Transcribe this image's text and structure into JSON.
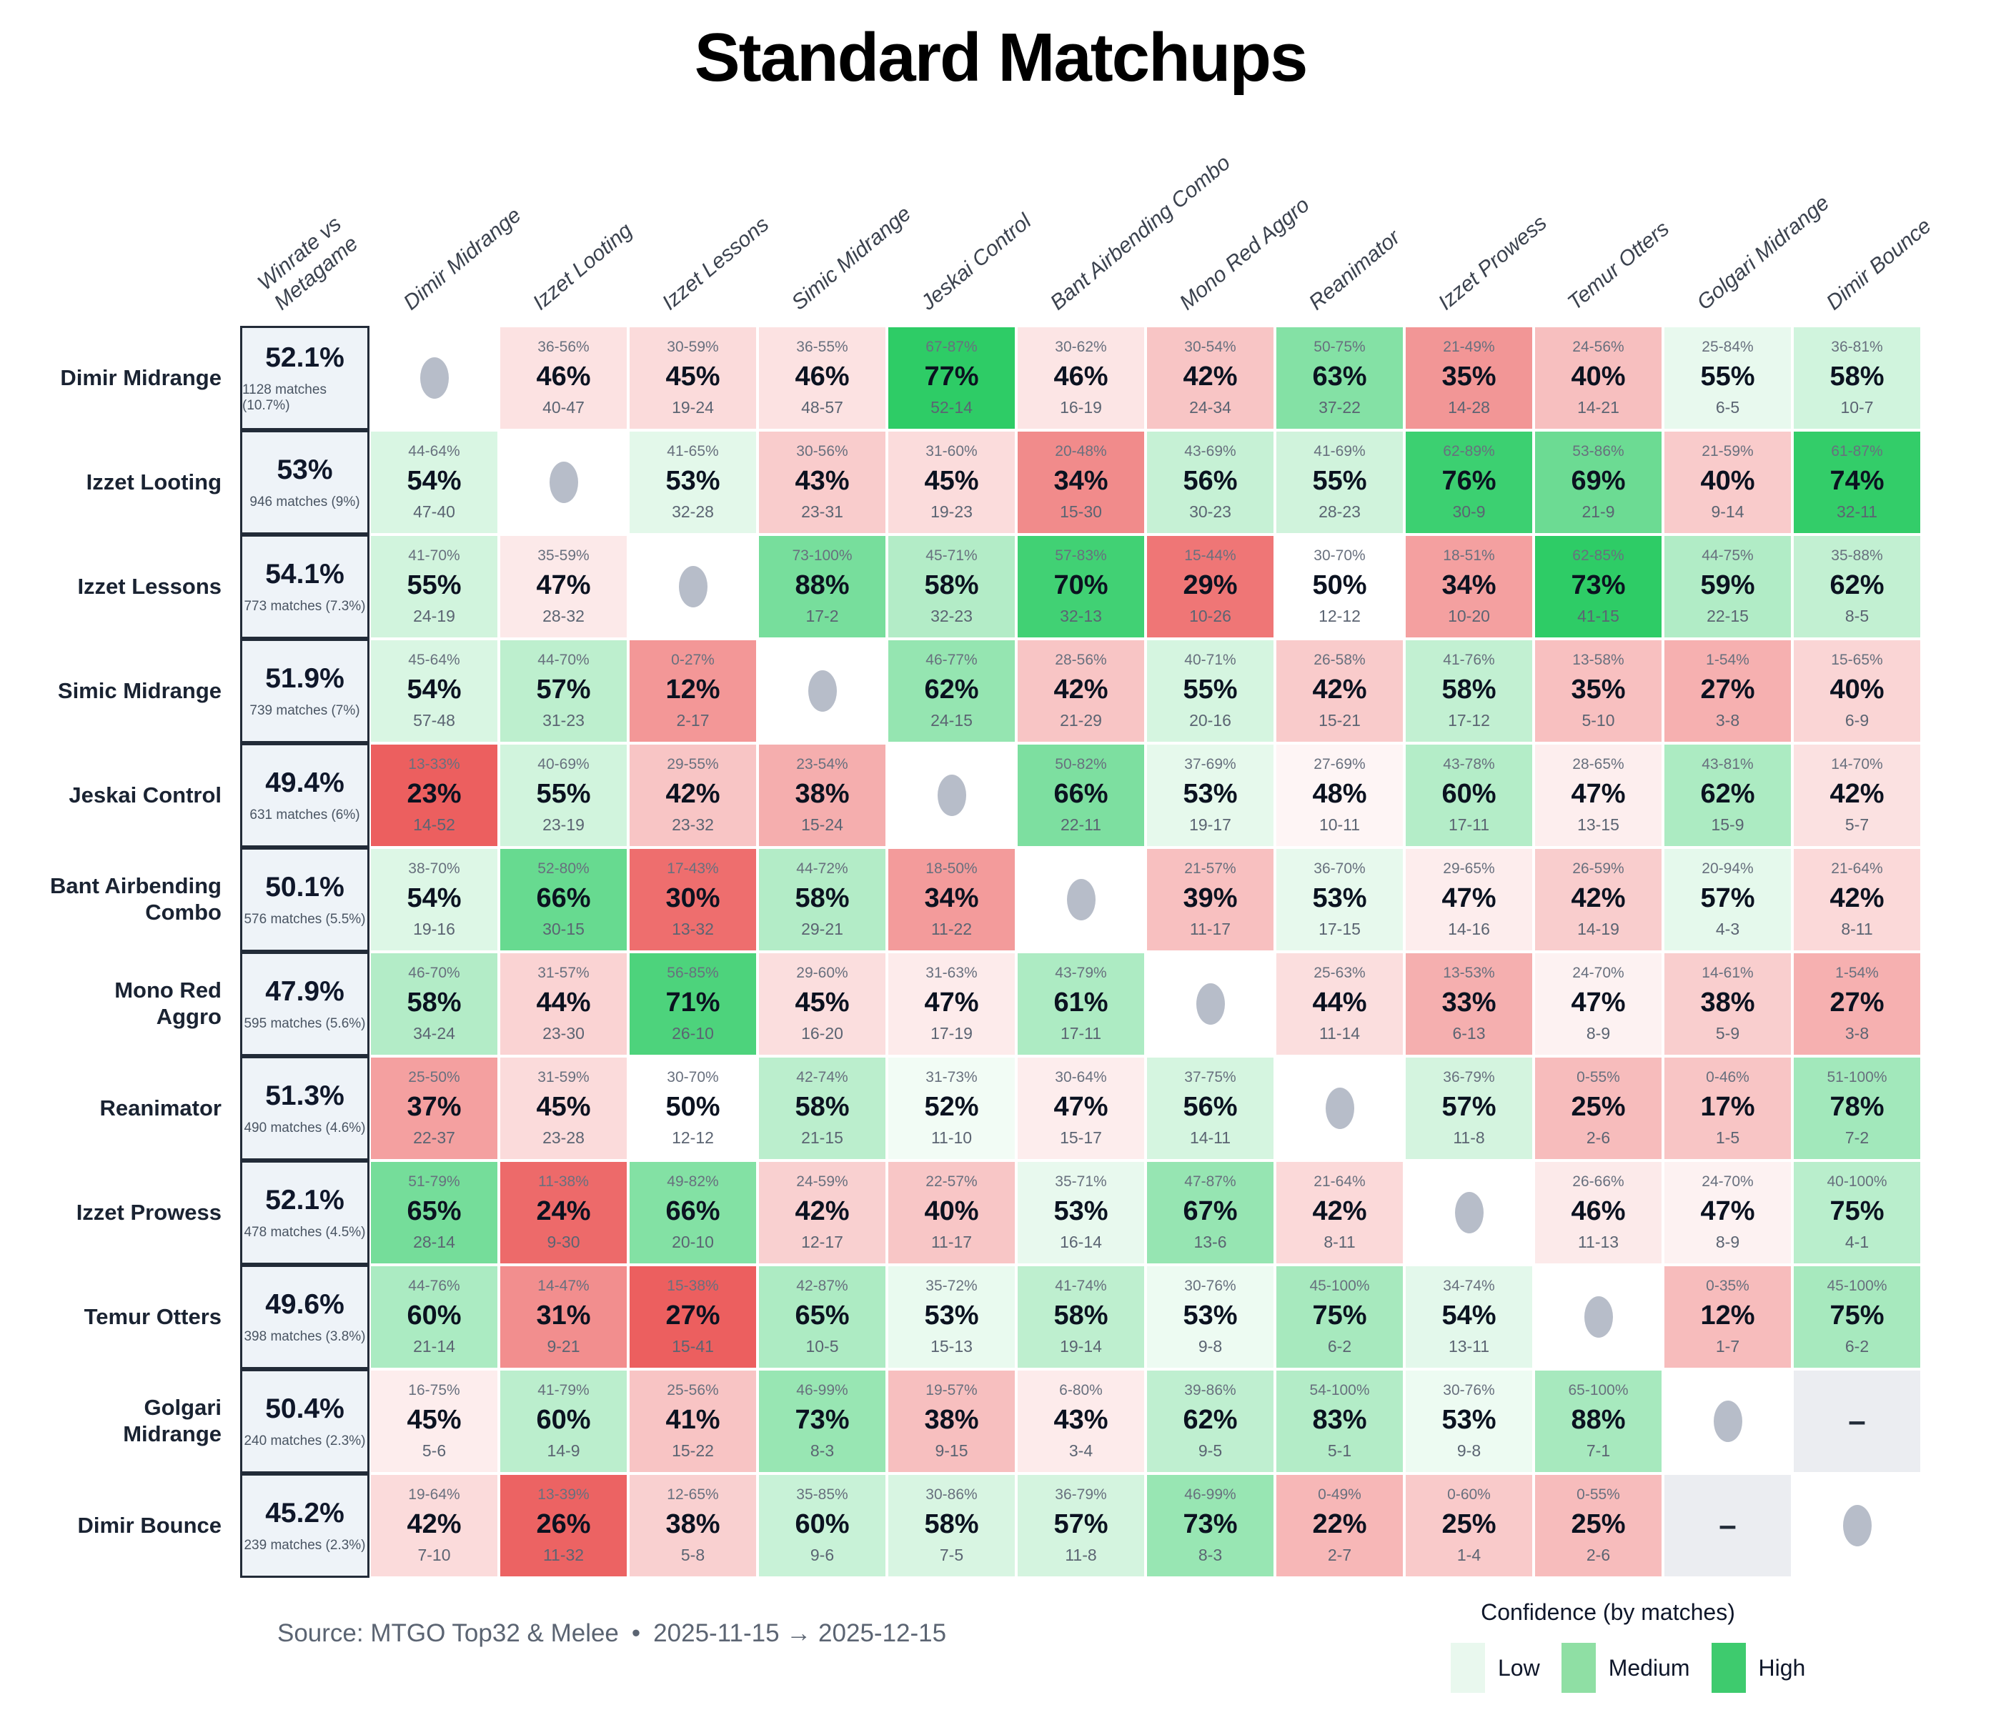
{
  "title": "Standard Matchups",
  "footer": {
    "source": "Source: MTGO Top32 & Melee",
    "bullet": "•",
    "date_range": "2025-11-15 → 2025-12-15"
  },
  "legend": {
    "title": "Confidence (by matches)",
    "items": [
      {
        "label": "Low",
        "color": "#e9f8ee"
      },
      {
        "label": "Medium",
        "color": "#8fdfa4"
      },
      {
        "label": "High",
        "color": "#3ecb6e"
      }
    ]
  },
  "colors": {
    "green_full": "#2ecc66",
    "red_full": "#ec5f5f",
    "winrate_bg": "#eef3f8",
    "winrate_border": "#222b38",
    "diag_dot": "#b7bdc9",
    "dash_bg": "#ebedf1"
  },
  "chart_data": {
    "type": "heatmap",
    "title": "Standard Matchups",
    "first_column_header": [
      "Winrate vs",
      "Metagame"
    ],
    "decks": [
      "Dimir Midrange",
      "Izzet Looting",
      "Izzet Lessons",
      "Simic Midrange",
      "Jeskai Control",
      "Bant Airbending Combo",
      "Mono Red Aggro",
      "Reanimator",
      "Izzet Prowess",
      "Temur Otters",
      "Golgari Midrange",
      "Dimir Bounce"
    ],
    "cell_format": [
      "confidence_interval",
      "winrate",
      "record_w-l"
    ],
    "rows": [
      {
        "deck": "Dimir Midrange",
        "winrate": "52.1%",
        "matches": "1128 matches (10.7%)",
        "cells": [
          "diag",
          [
            "36-56%",
            "46%",
            "40-47"
          ],
          [
            "30-59%",
            "45%",
            "19-24"
          ],
          [
            "36-55%",
            "46%",
            "48-57"
          ],
          [
            "67-87%",
            "77%",
            "52-14"
          ],
          [
            "30-62%",
            "46%",
            "16-19"
          ],
          [
            "30-54%",
            "42%",
            "24-34"
          ],
          [
            "50-75%",
            "63%",
            "37-22"
          ],
          [
            "21-49%",
            "35%",
            "14-28"
          ],
          [
            "24-56%",
            "40%",
            "14-21"
          ],
          [
            "25-84%",
            "55%",
            "6-5"
          ],
          [
            "36-81%",
            "58%",
            "10-7"
          ]
        ]
      },
      {
        "deck": "Izzet Looting",
        "winrate": "53%",
        "matches": "946 matches (9%)",
        "cells": [
          [
            "44-64%",
            "54%",
            "47-40"
          ],
          "diag",
          [
            "41-65%",
            "53%",
            "32-28"
          ],
          [
            "30-56%",
            "43%",
            "23-31"
          ],
          [
            "31-60%",
            "45%",
            "19-23"
          ],
          [
            "20-48%",
            "34%",
            "15-30"
          ],
          [
            "43-69%",
            "56%",
            "30-23"
          ],
          [
            "41-69%",
            "55%",
            "28-23"
          ],
          [
            "62-89%",
            "76%",
            "30-9"
          ],
          [
            "53-86%",
            "69%",
            "21-9"
          ],
          [
            "21-59%",
            "40%",
            "9-14"
          ],
          [
            "61-87%",
            "74%",
            "32-11"
          ]
        ]
      },
      {
        "deck": "Izzet Lessons",
        "winrate": "54.1%",
        "matches": "773 matches (7.3%)",
        "cells": [
          [
            "41-70%",
            "55%",
            "24-19"
          ],
          [
            "35-59%",
            "47%",
            "28-32"
          ],
          "diag",
          [
            "73-100%",
            "88%",
            "17-2"
          ],
          [
            "45-71%",
            "58%",
            "32-23"
          ],
          [
            "57-83%",
            "70%",
            "32-13"
          ],
          [
            "15-44%",
            "29%",
            "10-26"
          ],
          [
            "30-70%",
            "50%",
            "12-12"
          ],
          [
            "18-51%",
            "34%",
            "10-20"
          ],
          [
            "62-85%",
            "73%",
            "41-15"
          ],
          [
            "44-75%",
            "59%",
            "22-15"
          ],
          [
            "35-88%",
            "62%",
            "8-5"
          ]
        ]
      },
      {
        "deck": "Simic Midrange",
        "winrate": "51.9%",
        "matches": "739 matches (7%)",
        "cells": [
          [
            "45-64%",
            "54%",
            "57-48"
          ],
          [
            "44-70%",
            "57%",
            "31-23"
          ],
          [
            "0-27%",
            "12%",
            "2-17"
          ],
          "diag",
          [
            "46-77%",
            "62%",
            "24-15"
          ],
          [
            "28-56%",
            "42%",
            "21-29"
          ],
          [
            "40-71%",
            "55%",
            "20-16"
          ],
          [
            "26-58%",
            "42%",
            "15-21"
          ],
          [
            "41-76%",
            "58%",
            "17-12"
          ],
          [
            "13-58%",
            "35%",
            "5-10"
          ],
          [
            "1-54%",
            "27%",
            "3-8"
          ],
          [
            "15-65%",
            "40%",
            "6-9"
          ]
        ]
      },
      {
        "deck": "Jeskai Control",
        "winrate": "49.4%",
        "matches": "631 matches (6%)",
        "cells": [
          [
            "13-33%",
            "23%",
            "14-52"
          ],
          [
            "40-69%",
            "55%",
            "23-19"
          ],
          [
            "29-55%",
            "42%",
            "23-32"
          ],
          [
            "23-54%",
            "38%",
            "15-24"
          ],
          "diag",
          [
            "50-82%",
            "66%",
            "22-11"
          ],
          [
            "37-69%",
            "53%",
            "19-17"
          ],
          [
            "27-69%",
            "48%",
            "10-11"
          ],
          [
            "43-78%",
            "60%",
            "17-11"
          ],
          [
            "28-65%",
            "47%",
            "13-15"
          ],
          [
            "43-81%",
            "62%",
            "15-9"
          ],
          [
            "14-70%",
            "42%",
            "5-7"
          ]
        ]
      },
      {
        "deck": "Bant Airbending Combo",
        "winrate": "50.1%",
        "matches": "576 matches (5.5%)",
        "cells": [
          [
            "38-70%",
            "54%",
            "19-16"
          ],
          [
            "52-80%",
            "66%",
            "30-15"
          ],
          [
            "17-43%",
            "30%",
            "13-32"
          ],
          [
            "44-72%",
            "58%",
            "29-21"
          ],
          [
            "18-50%",
            "34%",
            "11-22"
          ],
          "diag",
          [
            "21-57%",
            "39%",
            "11-17"
          ],
          [
            "36-70%",
            "53%",
            "17-15"
          ],
          [
            "29-65%",
            "47%",
            "14-16"
          ],
          [
            "26-59%",
            "42%",
            "14-19"
          ],
          [
            "20-94%",
            "57%",
            "4-3"
          ],
          [
            "21-64%",
            "42%",
            "8-11"
          ]
        ]
      },
      {
        "deck": "Mono Red Aggro",
        "winrate": "47.9%",
        "matches": "595 matches (5.6%)",
        "cells": [
          [
            "46-70%",
            "58%",
            "34-24"
          ],
          [
            "31-57%",
            "44%",
            "23-30"
          ],
          [
            "56-85%",
            "71%",
            "26-10"
          ],
          [
            "29-60%",
            "45%",
            "16-20"
          ],
          [
            "31-63%",
            "47%",
            "17-19"
          ],
          [
            "43-79%",
            "61%",
            "17-11"
          ],
          "diag",
          [
            "25-63%",
            "44%",
            "11-14"
          ],
          [
            "13-53%",
            "33%",
            "6-13"
          ],
          [
            "24-70%",
            "47%",
            "8-9"
          ],
          [
            "14-61%",
            "38%",
            "5-9"
          ],
          [
            "1-54%",
            "27%",
            "3-8"
          ]
        ]
      },
      {
        "deck": "Reanimator",
        "winrate": "51.3%",
        "matches": "490 matches (4.6%)",
        "cells": [
          [
            "25-50%",
            "37%",
            "22-37"
          ],
          [
            "31-59%",
            "45%",
            "23-28"
          ],
          [
            "30-70%",
            "50%",
            "12-12"
          ],
          [
            "42-74%",
            "58%",
            "21-15"
          ],
          [
            "31-73%",
            "52%",
            "11-10"
          ],
          [
            "30-64%",
            "47%",
            "15-17"
          ],
          [
            "37-75%",
            "56%",
            "14-11"
          ],
          "diag",
          [
            "36-79%",
            "57%",
            "11-8"
          ],
          [
            "0-55%",
            "25%",
            "2-6"
          ],
          [
            "0-46%",
            "17%",
            "1-5"
          ],
          [
            "51-100%",
            "78%",
            "7-2"
          ]
        ]
      },
      {
        "deck": "Izzet Prowess",
        "winrate": "52.1%",
        "matches": "478 matches (4.5%)",
        "cells": [
          [
            "51-79%",
            "65%",
            "28-14"
          ],
          [
            "11-38%",
            "24%",
            "9-30"
          ],
          [
            "49-82%",
            "66%",
            "20-10"
          ],
          [
            "24-59%",
            "42%",
            "12-17"
          ],
          [
            "22-57%",
            "40%",
            "11-17"
          ],
          [
            "35-71%",
            "53%",
            "16-14"
          ],
          [
            "47-87%",
            "67%",
            "13-6"
          ],
          [
            "21-64%",
            "42%",
            "8-11"
          ],
          "diag",
          [
            "26-66%",
            "46%",
            "11-13"
          ],
          [
            "24-70%",
            "47%",
            "8-9"
          ],
          [
            "40-100%",
            "75%",
            "4-1"
          ]
        ]
      },
      {
        "deck": "Temur Otters",
        "winrate": "49.6%",
        "matches": "398 matches (3.8%)",
        "cells": [
          [
            "44-76%",
            "60%",
            "21-14"
          ],
          [
            "14-47%",
            "31%",
            "9-21"
          ],
          [
            "15-38%",
            "27%",
            "15-41"
          ],
          [
            "42-87%",
            "65%",
            "10-5"
          ],
          [
            "35-72%",
            "53%",
            "15-13"
          ],
          [
            "41-74%",
            "58%",
            "19-14"
          ],
          [
            "30-76%",
            "53%",
            "9-8"
          ],
          [
            "45-100%",
            "75%",
            "6-2"
          ],
          [
            "34-74%",
            "54%",
            "13-11"
          ],
          "diag",
          [
            "0-35%",
            "12%",
            "1-7"
          ],
          [
            "45-100%",
            "75%",
            "6-2"
          ]
        ]
      },
      {
        "deck": "Golgari Midrange",
        "winrate": "50.4%",
        "matches": "240 matches (2.3%)",
        "cells": [
          [
            "16-75%",
            "45%",
            "5-6"
          ],
          [
            "41-79%",
            "60%",
            "14-9"
          ],
          [
            "25-56%",
            "41%",
            "15-22"
          ],
          [
            "46-99%",
            "73%",
            "8-3"
          ],
          [
            "19-57%",
            "38%",
            "9-15"
          ],
          [
            "6-80%",
            "43%",
            "3-4"
          ],
          [
            "39-86%",
            "62%",
            "9-5"
          ],
          [
            "54-100%",
            "83%",
            "5-1"
          ],
          [
            "30-76%",
            "53%",
            "9-8"
          ],
          [
            "65-100%",
            "88%",
            "7-1"
          ],
          "diag",
          "dash"
        ]
      },
      {
        "deck": "Dimir Bounce",
        "winrate": "45.2%",
        "matches": "239 matches (2.3%)",
        "cells": [
          [
            "19-64%",
            "42%",
            "7-10"
          ],
          [
            "13-39%",
            "26%",
            "11-32"
          ],
          [
            "12-65%",
            "38%",
            "5-8"
          ],
          [
            "35-85%",
            "60%",
            "9-6"
          ],
          [
            "30-86%",
            "58%",
            "7-5"
          ],
          [
            "36-79%",
            "57%",
            "11-8"
          ],
          [
            "46-99%",
            "73%",
            "8-3"
          ],
          [
            "0-49%",
            "22%",
            "2-7"
          ],
          [
            "0-60%",
            "25%",
            "1-4"
          ],
          [
            "0-55%",
            "25%",
            "2-6"
          ],
          "dash",
          "diag"
        ]
      }
    ]
  }
}
